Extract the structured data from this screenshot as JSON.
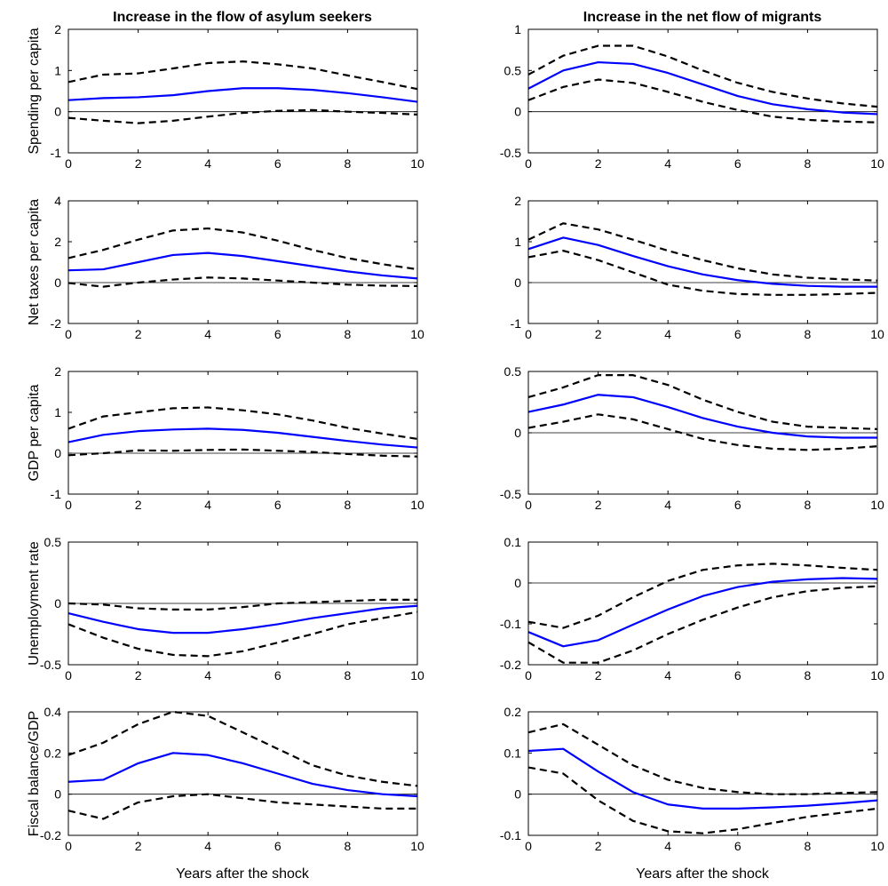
{
  "colors": {
    "center": "#0000ff",
    "band": "#000000",
    "zero": "#000000",
    "axis": "#000000"
  },
  "columns": [
    "Increase in the flow of asylum seekers",
    "Increase in the net flow of migrants"
  ],
  "xlabel": "Years after the shock",
  "chart_data": [
    {
      "type": "line",
      "row": 0,
      "col": 0,
      "ylabel": "Spending per capita",
      "xlim": [
        0,
        10
      ],
      "ylim": [
        -1,
        2
      ],
      "yticks": [
        -1,
        0,
        1,
        2
      ],
      "xticks": [
        0,
        2,
        4,
        6,
        8,
        10
      ],
      "x": [
        0,
        1,
        2,
        3,
        4,
        5,
        6,
        7,
        8,
        9,
        10
      ],
      "series": [
        {
          "name": "upper",
          "style": "dashed",
          "values": [
            0.72,
            0.9,
            0.93,
            1.05,
            1.18,
            1.22,
            1.15,
            1.05,
            0.88,
            0.72,
            0.55
          ]
        },
        {
          "name": "point estimate",
          "style": "solid",
          "values": [
            0.28,
            0.33,
            0.35,
            0.4,
            0.5,
            0.57,
            0.57,
            0.53,
            0.45,
            0.35,
            0.24
          ]
        },
        {
          "name": "lower",
          "style": "dashed",
          "values": [
            -0.15,
            -0.22,
            -0.28,
            -0.22,
            -0.12,
            -0.03,
            0.02,
            0.04,
            0.0,
            -0.03,
            -0.07
          ]
        }
      ]
    },
    {
      "type": "line",
      "row": 0,
      "col": 1,
      "ylabel": "",
      "xlim": [
        0,
        10
      ],
      "ylim": [
        -0.5,
        1
      ],
      "yticks": [
        -0.5,
        0,
        0.5,
        1
      ],
      "xticks": [
        0,
        2,
        4,
        6,
        8,
        10
      ],
      "x": [
        0,
        1,
        2,
        3,
        4,
        5,
        6,
        7,
        8,
        9,
        10
      ],
      "series": [
        {
          "name": "upper",
          "style": "dashed",
          "values": [
            0.45,
            0.68,
            0.8,
            0.8,
            0.67,
            0.5,
            0.35,
            0.24,
            0.16,
            0.1,
            0.06
          ]
        },
        {
          "name": "point estimate",
          "style": "solid",
          "values": [
            0.28,
            0.5,
            0.6,
            0.58,
            0.47,
            0.33,
            0.19,
            0.09,
            0.03,
            -0.01,
            -0.03
          ]
        },
        {
          "name": "lower",
          "style": "dashed",
          "values": [
            0.14,
            0.3,
            0.39,
            0.35,
            0.24,
            0.12,
            0.02,
            -0.06,
            -0.1,
            -0.12,
            -0.13
          ]
        }
      ]
    },
    {
      "type": "line",
      "row": 1,
      "col": 0,
      "ylabel": "Net taxes per capita",
      "xlim": [
        0,
        10
      ],
      "ylim": [
        -2,
        4
      ],
      "yticks": [
        -2,
        0,
        2,
        4
      ],
      "xticks": [
        0,
        2,
        4,
        6,
        8,
        10
      ],
      "x": [
        0,
        1,
        2,
        3,
        4,
        5,
        6,
        7,
        8,
        9,
        10
      ],
      "series": [
        {
          "name": "upper",
          "style": "dashed",
          "values": [
            1.2,
            1.6,
            2.1,
            2.55,
            2.65,
            2.45,
            2.05,
            1.6,
            1.2,
            0.9,
            0.65
          ]
        },
        {
          "name": "point estimate",
          "style": "solid",
          "values": [
            0.6,
            0.65,
            1.0,
            1.35,
            1.45,
            1.3,
            1.05,
            0.8,
            0.55,
            0.35,
            0.2
          ]
        },
        {
          "name": "lower",
          "style": "dashed",
          "values": [
            -0.02,
            -0.2,
            0.0,
            0.15,
            0.25,
            0.2,
            0.1,
            0.0,
            -0.1,
            -0.15,
            -0.17
          ]
        }
      ]
    },
    {
      "type": "line",
      "row": 1,
      "col": 1,
      "ylabel": "",
      "xlim": [
        0,
        10
      ],
      "ylim": [
        -1,
        2
      ],
      "yticks": [
        -1,
        0,
        1,
        2
      ],
      "xticks": [
        0,
        2,
        4,
        6,
        8,
        10
      ],
      "x": [
        0,
        1,
        2,
        3,
        4,
        5,
        6,
        7,
        8,
        9,
        10
      ],
      "series": [
        {
          "name": "upper",
          "style": "dashed",
          "values": [
            1.05,
            1.45,
            1.3,
            1.05,
            0.78,
            0.55,
            0.35,
            0.2,
            0.12,
            0.08,
            0.05
          ]
        },
        {
          "name": "point estimate",
          "style": "solid",
          "values": [
            0.82,
            1.1,
            0.92,
            0.65,
            0.4,
            0.2,
            0.06,
            -0.03,
            -0.08,
            -0.1,
            -0.1
          ]
        },
        {
          "name": "lower",
          "style": "dashed",
          "values": [
            0.62,
            0.78,
            0.55,
            0.25,
            -0.05,
            -0.2,
            -0.28,
            -0.3,
            -0.3,
            -0.28,
            -0.25
          ]
        }
      ]
    },
    {
      "type": "line",
      "row": 2,
      "col": 0,
      "ylabel": "GDP per capita",
      "xlim": [
        0,
        10
      ],
      "ylim": [
        -1,
        2
      ],
      "yticks": [
        -1,
        0,
        1,
        2
      ],
      "xticks": [
        0,
        2,
        4,
        6,
        8,
        10
      ],
      "x": [
        0,
        1,
        2,
        3,
        4,
        5,
        6,
        7,
        8,
        9,
        10
      ],
      "series": [
        {
          "name": "upper",
          "style": "dashed",
          "values": [
            0.6,
            0.9,
            1.0,
            1.1,
            1.12,
            1.05,
            0.95,
            0.8,
            0.62,
            0.48,
            0.35
          ]
        },
        {
          "name": "point estimate",
          "style": "solid",
          "values": [
            0.27,
            0.45,
            0.54,
            0.58,
            0.6,
            0.57,
            0.5,
            0.4,
            0.3,
            0.21,
            0.14
          ]
        },
        {
          "name": "lower",
          "style": "dashed",
          "values": [
            -0.05,
            0.0,
            0.07,
            0.06,
            0.08,
            0.09,
            0.06,
            0.03,
            -0.02,
            -0.06,
            -0.08
          ]
        }
      ]
    },
    {
      "type": "line",
      "row": 2,
      "col": 1,
      "ylabel": "",
      "xlim": [
        0,
        10
      ],
      "ylim": [
        -0.5,
        0.5
      ],
      "yticks": [
        -0.5,
        0,
        0.5
      ],
      "xticks": [
        0,
        2,
        4,
        6,
        8,
        10
      ],
      "x": [
        0,
        1,
        2,
        3,
        4,
        5,
        6,
        7,
        8,
        9,
        10
      ],
      "series": [
        {
          "name": "upper",
          "style": "dashed",
          "values": [
            0.29,
            0.37,
            0.47,
            0.47,
            0.39,
            0.27,
            0.17,
            0.09,
            0.05,
            0.04,
            0.03
          ]
        },
        {
          "name": "point estimate",
          "style": "solid",
          "values": [
            0.17,
            0.23,
            0.31,
            0.29,
            0.21,
            0.12,
            0.05,
            0.0,
            -0.03,
            -0.04,
            -0.04
          ]
        },
        {
          "name": "lower",
          "style": "dashed",
          "values": [
            0.04,
            0.09,
            0.15,
            0.11,
            0.03,
            -0.05,
            -0.1,
            -0.13,
            -0.14,
            -0.13,
            -0.11
          ]
        }
      ]
    },
    {
      "type": "line",
      "row": 3,
      "col": 0,
      "ylabel": "Unemployment rate",
      "xlim": [
        0,
        10
      ],
      "ylim": [
        -0.5,
        0.5
      ],
      "yticks": [
        -0.5,
        0,
        0.5
      ],
      "xticks": [
        0,
        2,
        4,
        6,
        8,
        10
      ],
      "x": [
        0,
        1,
        2,
        3,
        4,
        5,
        6,
        7,
        8,
        9,
        10
      ],
      "series": [
        {
          "name": "upper",
          "style": "dashed",
          "values": [
            0.0,
            -0.01,
            -0.04,
            -0.05,
            -0.05,
            -0.03,
            0.0,
            0.01,
            0.02,
            0.03,
            0.03
          ]
        },
        {
          "name": "point estimate",
          "style": "solid",
          "values": [
            -0.08,
            -0.15,
            -0.21,
            -0.24,
            -0.24,
            -0.21,
            -0.17,
            -0.12,
            -0.08,
            -0.04,
            -0.02
          ]
        },
        {
          "name": "lower",
          "style": "dashed",
          "values": [
            -0.17,
            -0.28,
            -0.37,
            -0.42,
            -0.43,
            -0.39,
            -0.32,
            -0.25,
            -0.17,
            -0.12,
            -0.07
          ]
        }
      ]
    },
    {
      "type": "line",
      "row": 3,
      "col": 1,
      "ylabel": "",
      "xlim": [
        0,
        10
      ],
      "ylim": [
        -0.2,
        0.1
      ],
      "yticks": [
        -0.2,
        -0.1,
        0,
        0.1
      ],
      "xticks": [
        0,
        2,
        4,
        6,
        8,
        10
      ],
      "x": [
        0,
        1,
        2,
        3,
        4,
        5,
        6,
        7,
        8,
        9,
        10
      ],
      "series": [
        {
          "name": "upper",
          "style": "dashed",
          "values": [
            -0.095,
            -0.11,
            -0.08,
            -0.035,
            0.005,
            0.032,
            0.043,
            0.047,
            0.043,
            0.037,
            0.032
          ]
        },
        {
          "name": "point estimate",
          "style": "solid",
          "values": [
            -0.12,
            -0.155,
            -0.14,
            -0.102,
            -0.065,
            -0.032,
            -0.01,
            0.003,
            0.009,
            0.012,
            0.01
          ]
        },
        {
          "name": "lower",
          "style": "dashed",
          "values": [
            -0.145,
            -0.195,
            -0.195,
            -0.165,
            -0.125,
            -0.09,
            -0.06,
            -0.035,
            -0.02,
            -0.012,
            -0.008
          ]
        }
      ]
    },
    {
      "type": "line",
      "row": 4,
      "col": 0,
      "ylabel": "Fiscal balance/GDP",
      "xlim": [
        0,
        10
      ],
      "ylim": [
        -0.2,
        0.4
      ],
      "yticks": [
        -0.2,
        0,
        0.2,
        0.4
      ],
      "xticks": [
        0,
        2,
        4,
        6,
        8,
        10
      ],
      "x": [
        0,
        1,
        2,
        3,
        4,
        5,
        6,
        7,
        8,
        9,
        10
      ],
      "series": [
        {
          "name": "upper",
          "style": "dashed",
          "values": [
            0.19,
            0.25,
            0.34,
            0.4,
            0.38,
            0.3,
            0.22,
            0.14,
            0.09,
            0.06,
            0.04
          ]
        },
        {
          "name": "point estimate",
          "style": "solid",
          "values": [
            0.06,
            0.07,
            0.15,
            0.2,
            0.19,
            0.15,
            0.1,
            0.05,
            0.02,
            0.0,
            -0.01
          ]
        },
        {
          "name": "lower",
          "style": "dashed",
          "values": [
            -0.08,
            -0.12,
            -0.04,
            -0.01,
            0.0,
            -0.02,
            -0.04,
            -0.05,
            -0.06,
            -0.07,
            -0.07
          ]
        }
      ]
    },
    {
      "type": "line",
      "row": 4,
      "col": 1,
      "ylabel": "",
      "xlim": [
        0,
        10
      ],
      "ylim": [
        -0.1,
        0.2
      ],
      "yticks": [
        -0.1,
        0,
        0.1,
        0.2
      ],
      "xticks": [
        0,
        2,
        4,
        6,
        8,
        10
      ],
      "x": [
        0,
        1,
        2,
        3,
        4,
        5,
        6,
        7,
        8,
        9,
        10
      ],
      "series": [
        {
          "name": "upper",
          "style": "dashed",
          "values": [
            0.15,
            0.17,
            0.12,
            0.07,
            0.035,
            0.015,
            0.005,
            0.0,
            0.0,
            0.003,
            0.005
          ]
        },
        {
          "name": "point estimate",
          "style": "solid",
          "values": [
            0.105,
            0.11,
            0.055,
            0.005,
            -0.025,
            -0.035,
            -0.035,
            -0.032,
            -0.028,
            -0.022,
            -0.015
          ]
        },
        {
          "name": "lower",
          "style": "dashed",
          "values": [
            0.065,
            0.05,
            -0.015,
            -0.065,
            -0.09,
            -0.095,
            -0.085,
            -0.07,
            -0.055,
            -0.045,
            -0.035
          ]
        }
      ]
    }
  ]
}
